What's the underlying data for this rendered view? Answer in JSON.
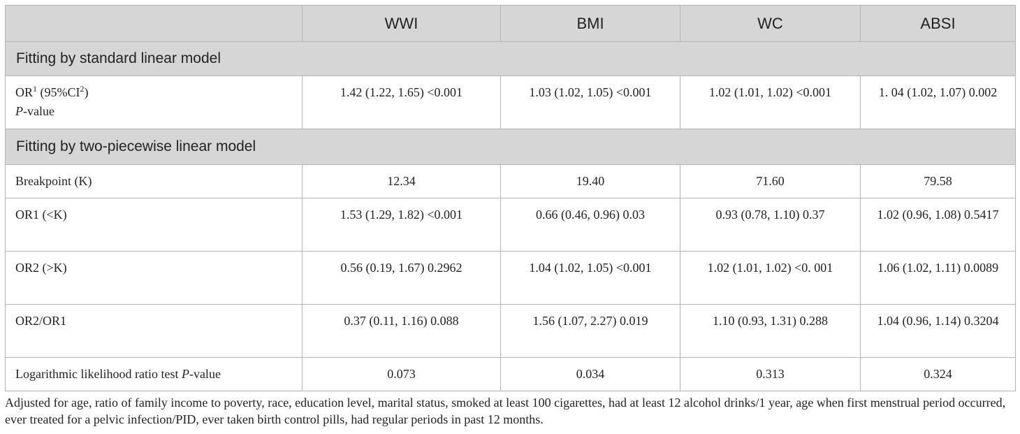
{
  "table": {
    "headers": [
      "",
      "WWI",
      "BMI",
      "WC",
      "ABSI"
    ],
    "section1_title": "Fitting by standard linear model",
    "row_or": {
      "label_or": "OR",
      "label_sup1": "1",
      "label_ci": " (95%CI",
      "label_sup2": "2",
      "label_close": ")",
      "label_p": "P",
      "label_value": "-value",
      "values": [
        "1.42 (1.22, 1.65) <0.001",
        "1.03 (1.02, 1.05) <0.001",
        "1.02 (1.01, 1.02) <0.001",
        "1. 04 (1.02, 1.07) 0.002"
      ]
    },
    "section2_title": "Fitting by two-piecewise linear model",
    "rows": [
      {
        "label": "Breakpoint (K)",
        "values": [
          "12.34",
          "19.40",
          "71.60",
          "79.58"
        ]
      },
      {
        "label": "OR1 (<K)",
        "values": [
          "1.53 (1.29, 1.82) <0.001",
          "0.66 (0.46, 0.96) 0.03",
          "0.93 (0.78, 1.10) 0.37",
          "1.02 (0.96, 1.08) 0.5417"
        ]
      },
      {
        "label": "OR2 (>K)",
        "values": [
          "0.56 (0.19, 1.67) 0.2962",
          "1.04 (1.02, 1.05) <0.001",
          "1.02 (1.01, 1.02) <0. 001",
          "1.06 (1.02, 1.11) 0.0089"
        ]
      },
      {
        "label": "OR2/OR1",
        "values": [
          "0.37 (0.11, 1.16) 0.088",
          "1.56 (1.07, 2.27) 0.019",
          "1.10 (0.93, 1.31) 0.288",
          "1.04 (0.96, 1.14) 0.3204"
        ]
      }
    ],
    "last_row": {
      "label_prefix": "Logarithmic likelihood ratio test ",
      "label_p": "P",
      "label_suffix": "-value",
      "values": [
        "0.073",
        "0.034",
        "0.313",
        "0.324"
      ]
    }
  },
  "footnote": "Adjusted for age, ratio of family income to poverty, race, education level, marital status, smoked at least 100 cigarettes, had at least 12 alcohol drinks/1 year, age when first menstrual period occurred, ever treated for a pelvic infection/PID, ever taken birth control pills, had regular periods in past 12 months."
}
